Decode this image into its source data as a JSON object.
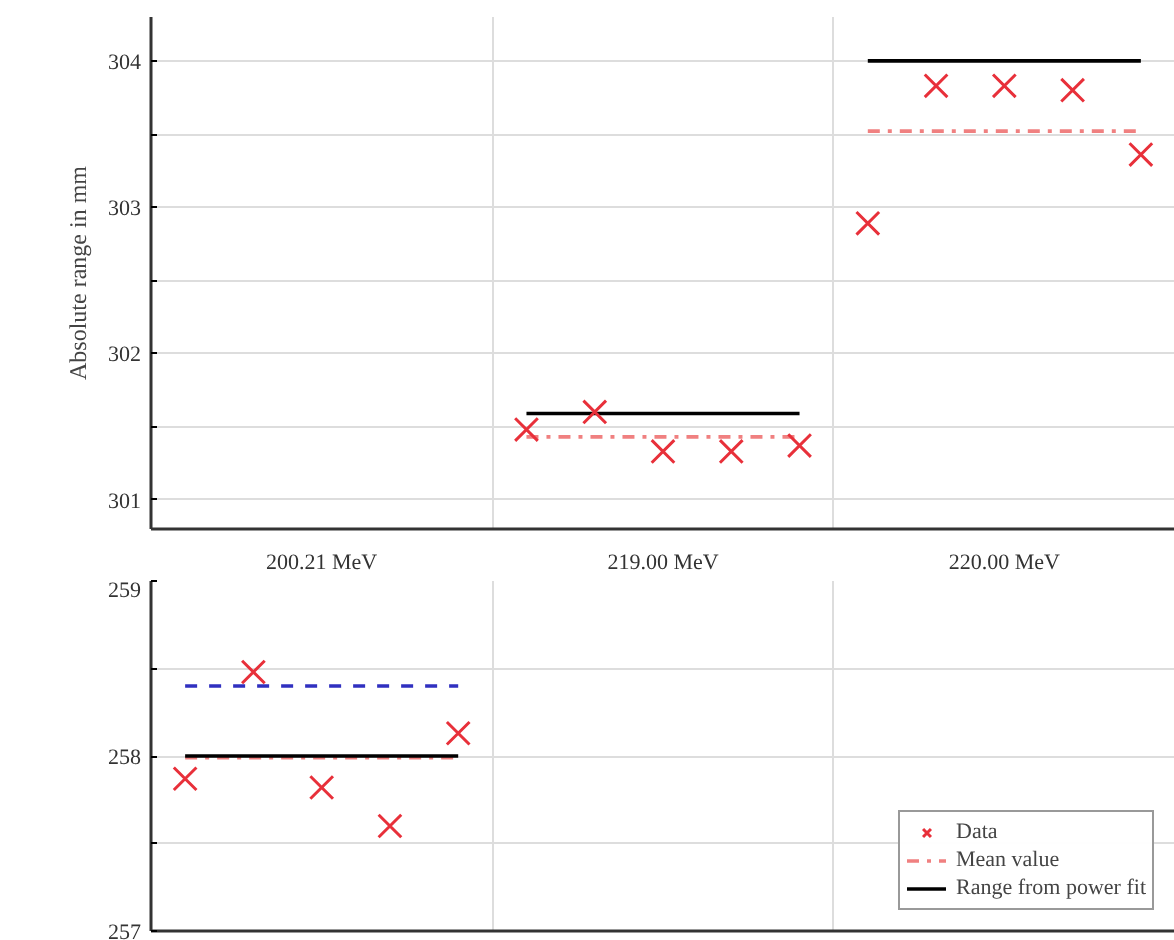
{
  "chart_data": [
    {
      "type": "scatter",
      "ylabel": "Absolute range in mm",
      "ylim": [
        300.8,
        304.3
      ],
      "categories": [
        null,
        null,
        "200.21 MeV",
        null,
        null,
        null,
        null,
        "219.00 MeV",
        null,
        null,
        null,
        null,
        "220.00 MeV",
        null,
        null
      ],
      "yticks": [
        301,
        {
          "value": 301.5,
          "label": null
        },
        302,
        {
          "value": 302.5,
          "label": null
        },
        303,
        {
          "value": 303.5,
          "label": null
        },
        304
      ],
      "grid": true,
      "legend": false,
      "series": [
        {
          "type": "line",
          "color": "#f08080",
          "line_style": "dashdot",
          "values": [
            null,
            null,
            null,
            null,
            null,
            301.43,
            301.43,
            301.43,
            301.43,
            301.43,
            303.52,
            303.52,
            303.52,
            303.52,
            303.52
          ]
        },
        {
          "type": "line",
          "color": "#000000",
          "line_style": "solid",
          "values": [
            null,
            null,
            null,
            null,
            null,
            301.59,
            301.59,
            301.59,
            301.59,
            301.59,
            304.0,
            304.0,
            304.0,
            304.0,
            304.0
          ]
        },
        {
          "marker": "cross",
          "color": "#e8303a",
          "values": [
            null,
            null,
            null,
            null,
            null,
            301.48,
            301.6,
            301.33,
            301.33,
            301.37,
            302.89,
            303.83,
            303.83,
            303.8,
            303.36
          ]
        }
      ]
    },
    {
      "type": "scatter",
      "ylim": [
        257,
        259
      ],
      "tick_labels": "y",
      "categories": [
        null,
        null,
        null,
        null,
        null,
        null,
        null,
        null,
        null,
        null,
        null,
        null,
        null,
        null,
        null
      ],
      "yticks": [
        257,
        {
          "value": 257.5,
          "label": null
        },
        258,
        {
          "value": 258.5,
          "label": null
        },
        259
      ],
      "grid": true,
      "legend": "bottom right",
      "series": [
        {
          "name": "Data",
          "marker": "cross",
          "color": "#e8303a",
          "values": [
            257.87,
            258.48,
            257.82,
            257.6,
            258.13,
            null,
            null,
            null,
            null,
            null,
            null,
            null,
            null,
            null,
            null
          ]
        },
        {
          "type": "line",
          "name": "Mean value",
          "color": "#f08080",
          "line_style": "dashdot",
          "values": [
            257.99,
            257.99,
            257.99,
            257.99,
            257.99,
            null,
            null,
            null,
            null,
            null,
            null,
            null,
            null,
            null,
            null
          ]
        },
        {
          "type": "line",
          "name": "Range from power fit",
          "color": "#000000",
          "line_style": "solid",
          "values": [
            258.0,
            258.0,
            258.0,
            258.0,
            258.0,
            null,
            null,
            null,
            null,
            null,
            null,
            null,
            null,
            null,
            null
          ]
        },
        {
          "type": "line",
          "color": "#3030c0",
          "line_style": "dashed",
          "values": [
            258.4,
            258.4,
            258.4,
            258.4,
            258.4,
            null,
            null,
            null,
            null,
            null,
            null,
            null,
            null,
            null,
            null
          ]
        }
      ]
    }
  ]
}
